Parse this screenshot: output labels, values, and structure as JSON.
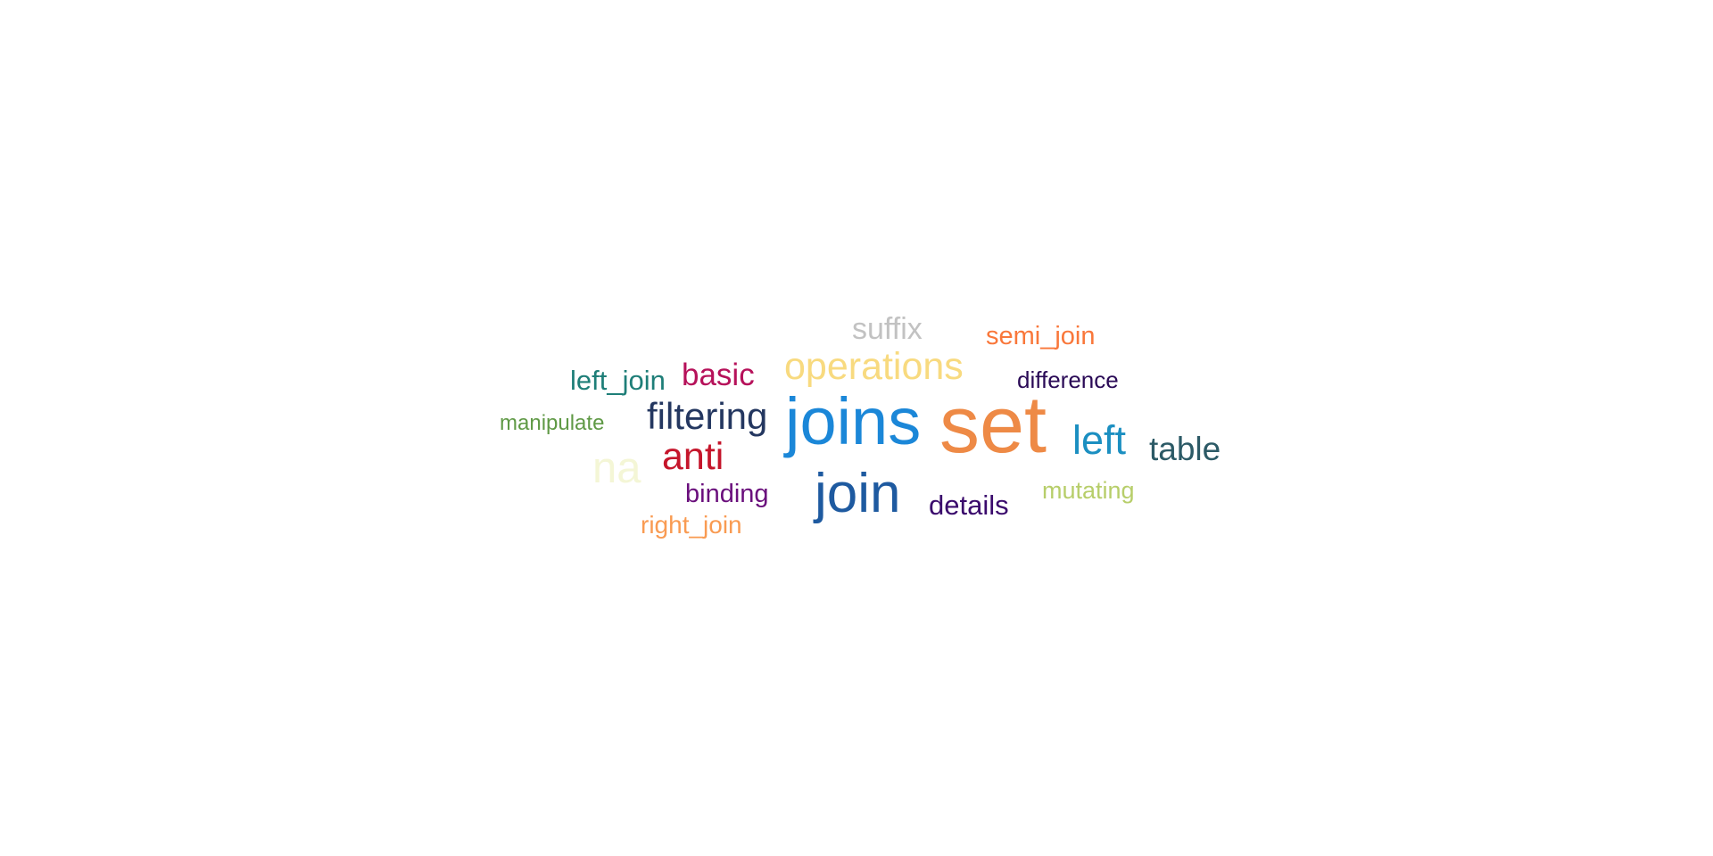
{
  "cloud": {
    "words": [
      {
        "text": "set",
        "color": "#ee8a46"
      },
      {
        "text": "joins",
        "color": "#1b87d8"
      },
      {
        "text": "join",
        "color": "#1e5aa0"
      },
      {
        "text": "operations",
        "color": "#f8da7f"
      },
      {
        "text": "filtering",
        "color": "#243760"
      },
      {
        "text": "left",
        "color": "#1b8fc1"
      },
      {
        "text": "table",
        "color": "#2c5a66"
      },
      {
        "text": "anti",
        "color": "#c5152b"
      },
      {
        "text": "na",
        "color": "#f4f6d6"
      },
      {
        "text": "basic",
        "color": "#b6115a"
      },
      {
        "text": "suffix",
        "color": "#c2c2c2"
      },
      {
        "text": "left_join",
        "color": "#1e7e78"
      },
      {
        "text": "semi_join",
        "color": "#f9773a"
      },
      {
        "text": "details",
        "color": "#3a0a6c"
      },
      {
        "text": "binding",
        "color": "#6a0f7c"
      },
      {
        "text": "mutating",
        "color": "#b7ce6a"
      },
      {
        "text": "difference",
        "color": "#2a0a56"
      },
      {
        "text": "right_join",
        "color": "#f99b52"
      },
      {
        "text": "manipulate",
        "color": "#5f9945"
      }
    ]
  }
}
